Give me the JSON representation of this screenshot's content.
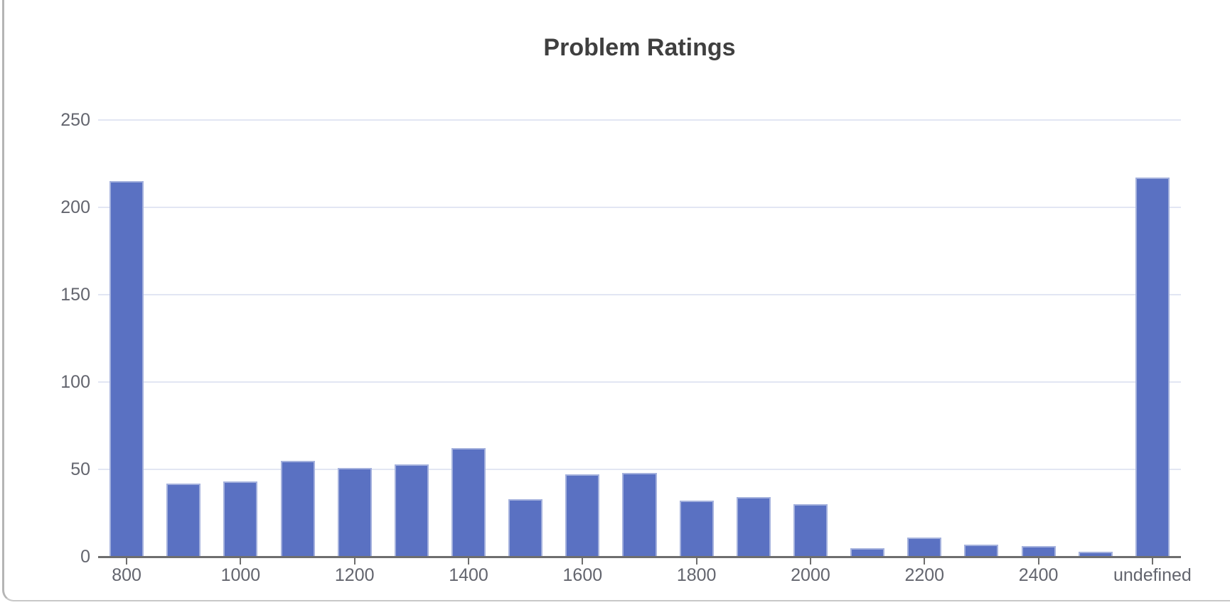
{
  "chart_data": {
    "type": "bar",
    "title": "Problem Ratings",
    "categories": [
      "800",
      "900",
      "1000",
      "1100",
      "1200",
      "1300",
      "1400",
      "1500",
      "1600",
      "1700",
      "1800",
      "1900",
      "2000",
      "2100",
      "2200",
      "2300",
      "2400",
      "2500",
      "undefined"
    ],
    "values": [
      215,
      42,
      43,
      55,
      51,
      53,
      62,
      33,
      47,
      48,
      32,
      34,
      30,
      5,
      11,
      7,
      6,
      3,
      217
    ],
    "x_tick_labels": [
      "800",
      "1000",
      "1200",
      "1400",
      "1600",
      "1800",
      "2000",
      "2200",
      "2400",
      "undefined"
    ],
    "x_tick_slots": [
      0,
      2,
      4,
      6,
      8,
      10,
      12,
      14,
      16,
      18
    ],
    "y_ticks": [
      0,
      50,
      100,
      150,
      200,
      250
    ],
    "ylim": [
      0,
      250
    ],
    "xlabel": "",
    "ylabel": "",
    "grid": "horizontal",
    "legend": "none",
    "colors": {
      "bar": "#5a71c2",
      "grid": "#e2e6f3",
      "axis": "#6e6e6e",
      "tick_labels": "#63656e",
      "title": "#3f3f3f"
    }
  },
  "frame": {
    "side_border_color": "#b5b5b5",
    "bottom_border_color": "#c8c8c8"
  }
}
